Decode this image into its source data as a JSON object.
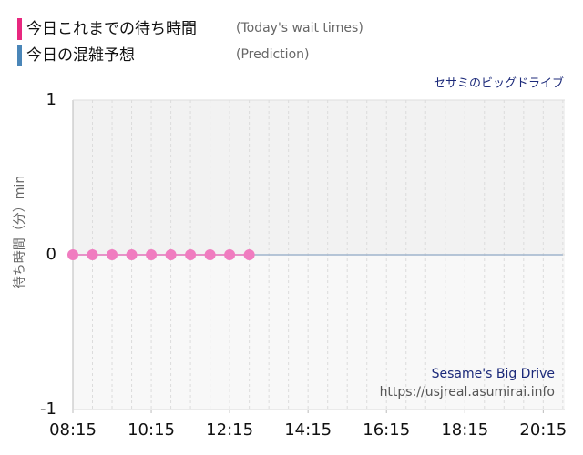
{
  "chart_data": {
    "type": "line",
    "title": "セサミのビッグドライブ",
    "y_label": "待ち時間（分）min",
    "series": [
      {
        "name": "今日これまでの待ち時間",
        "name_en": "(Today's wait times)",
        "color": "#f07cc0",
        "legend_color": "#e8287f",
        "markers": true,
        "x": [
          "08:15",
          "08:45",
          "09:15",
          "09:45",
          "10:15",
          "10:45",
          "11:15",
          "11:45",
          "12:15",
          "12:45"
        ],
        "values": [
          0,
          0,
          0,
          0,
          0,
          0,
          0,
          0,
          0,
          0
        ]
      },
      {
        "name": "今日の混雑予想",
        "name_en": "(Prediction)",
        "color": "#9fb4cc",
        "legend_color": "#4a86b8",
        "markers": false,
        "x": [
          "08:15",
          "20:45"
        ],
        "values": [
          0,
          0
        ]
      }
    ],
    "xlim": [
      "08:15",
      "20:48"
    ],
    "xticks": [
      "08:15",
      "10:15",
      "12:15",
      "14:15",
      "16:15",
      "18:15",
      "20:15"
    ],
    "ylim": [
      -1,
      1
    ],
    "yticks": [
      1,
      0,
      -1
    ],
    "annotations": [
      "Sesame's Big Drive",
      "https://usjreal.asumirai.info"
    ]
  }
}
